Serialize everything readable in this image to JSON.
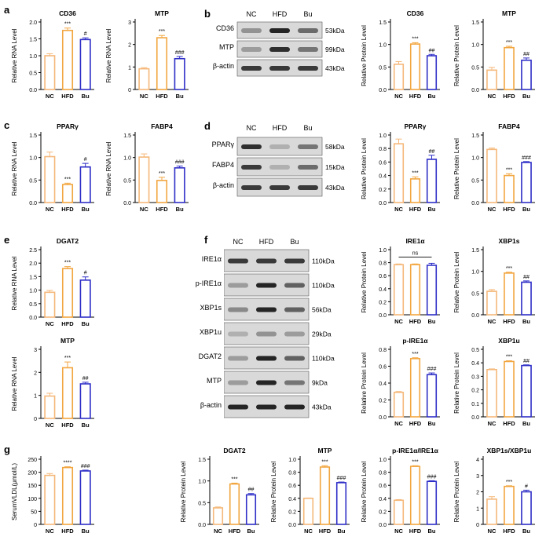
{
  "colors": {
    "NC": "#F5B87A",
    "HFD": "#F2A640",
    "Bu": "#2E2EC8",
    "axis": "#000000"
  },
  "panels": [
    "a",
    "b",
    "c",
    "d",
    "e",
    "f",
    "g"
  ],
  "blots": {
    "b": {
      "lanes": [
        "NC",
        "HFD",
        "Bu"
      ],
      "rows": [
        "CD36",
        "MTP",
        "β-actin"
      ],
      "sizes": [
        "53kDa",
        "99kDa",
        "43kDa"
      ]
    },
    "d": {
      "lanes": [
        "NC",
        "HFD",
        "Bu"
      ],
      "rows": [
        "PPARγ",
        "FABP4",
        "β-actin"
      ],
      "sizes": [
        "58kDa",
        "15kDa",
        "43kDa"
      ]
    },
    "f": {
      "lanes": [
        "NC",
        "HFD",
        "Bu"
      ],
      "rows": [
        "IRE1α",
        "p-IRE1α",
        "XBP1s",
        "XBP1u",
        "DGAT2",
        "MTP",
        "β-actin"
      ],
      "sizes": [
        "110kDa",
        "110kDa",
        "56kDa",
        "29kDa",
        "110kDa",
        "9kDa",
        "43kDa"
      ]
    }
  },
  "chart_data": [
    {
      "id": "a1",
      "type": "bar",
      "title": "CD36",
      "ylabel": "Relative RNA Level",
      "categories": [
        "NC",
        "HFD",
        "Bu"
      ],
      "values": [
        1.0,
        1.75,
        1.48
      ],
      "errors": [
        0.06,
        0.07,
        0.05
      ],
      "ylim": [
        0,
        2.0
      ],
      "yticks": [
        "0.0",
        "0.5",
        "1.0",
        "1.5",
        "2.0"
      ],
      "annotations": [
        "",
        "***",
        "#"
      ]
    },
    {
      "id": "a2",
      "type": "bar",
      "title": "MTP",
      "ylabel": "Relative RNA Level",
      "categories": [
        "NC",
        "HFD",
        "Bu"
      ],
      "values": [
        0.92,
        2.3,
        1.37
      ],
      "errors": [
        0.05,
        0.1,
        0.1
      ],
      "ylim": [
        0,
        3
      ],
      "yticks": [
        "0",
        "1",
        "2",
        "3"
      ],
      "annotations": [
        "",
        "***",
        "###"
      ]
    },
    {
      "id": "b1",
      "type": "bar",
      "title": "CD36",
      "ylabel": "Relative Protein Level",
      "categories": [
        "NC",
        "HFD",
        "Bu"
      ],
      "values": [
        0.56,
        1.01,
        0.75
      ],
      "errors": [
        0.06,
        0.03,
        0.03
      ],
      "ylim": [
        0,
        1.5
      ],
      "yticks": [
        "0.0",
        "0.5",
        "1.0",
        "1.5"
      ],
      "annotations": [
        "",
        "***",
        "##"
      ]
    },
    {
      "id": "b2",
      "type": "bar",
      "title": "MTP",
      "ylabel": "Relative Protein Level",
      "categories": [
        "NC",
        "HFD",
        "Bu"
      ],
      "values": [
        0.43,
        0.93,
        0.65
      ],
      "errors": [
        0.06,
        0.03,
        0.05
      ],
      "ylim": [
        0,
        1.5
      ],
      "yticks": [
        "0.0",
        "0.5",
        "1.0",
        "1.5"
      ],
      "annotations": [
        "",
        "***",
        "##"
      ]
    },
    {
      "id": "c1",
      "type": "bar",
      "title": "PPARγ",
      "ylabel": "Relative RNA Level",
      "categories": [
        "NC",
        "HFD",
        "Bu"
      ],
      "values": [
        1.02,
        0.4,
        0.79
      ],
      "errors": [
        0.1,
        0.03,
        0.08
      ],
      "ylim": [
        0,
        1.5
      ],
      "yticks": [
        "0.0",
        "0.5",
        "1.0",
        "1.5"
      ],
      "annotations": [
        "",
        "***",
        "#"
      ]
    },
    {
      "id": "c2",
      "type": "bar",
      "title": "FABP4",
      "ylabel": "Relative RNA Level",
      "categories": [
        "NC",
        "HFD",
        "Bu"
      ],
      "values": [
        1.01,
        0.49,
        0.77
      ],
      "errors": [
        0.07,
        0.07,
        0.04
      ],
      "ylim": [
        0,
        1.5
      ],
      "yticks": [
        "0.0",
        "0.5",
        "1.0",
        "1.5"
      ],
      "annotations": [
        "",
        "***",
        "###"
      ]
    },
    {
      "id": "d1",
      "type": "bar",
      "title": "PPARγ",
      "ylabel": "Relative Protein Level",
      "categories": [
        "NC",
        "HFD",
        "Bu"
      ],
      "values": [
        0.87,
        0.35,
        0.64
      ],
      "errors": [
        0.07,
        0.03,
        0.06
      ],
      "ylim": [
        0,
        1.0
      ],
      "yticks": [
        "0.0",
        "0.2",
        "0.4",
        "0.6",
        "0.8",
        "1.0"
      ],
      "annotations": [
        "",
        "***",
        "##"
      ]
    },
    {
      "id": "d2",
      "type": "bar",
      "title": "FABP4",
      "ylabel": "Relative Protein Level",
      "categories": [
        "NC",
        "HFD",
        "Bu"
      ],
      "values": [
        1.18,
        0.6,
        0.89
      ],
      "errors": [
        0.03,
        0.04,
        0.02
      ],
      "ylim": [
        0,
        1.5
      ],
      "yticks": [
        "0.0",
        "0.5",
        "1.0",
        "1.5"
      ],
      "annotations": [
        "",
        "***",
        "###"
      ]
    },
    {
      "id": "e1",
      "type": "bar",
      "title": "DGAT2",
      "ylabel": "Relative RNA Level",
      "categories": [
        "NC",
        "HFD",
        "Bu"
      ],
      "values": [
        0.92,
        1.8,
        1.37
      ],
      "errors": [
        0.07,
        0.07,
        0.12
      ],
      "ylim": [
        0,
        2.5
      ],
      "yticks": [
        "0.0",
        "0.5",
        "1.0",
        "1.5",
        "2.0",
        "2.5"
      ],
      "annotations": [
        "",
        "***",
        "#"
      ]
    },
    {
      "id": "e2",
      "type": "bar",
      "title": "MTP",
      "ylabel": "Relative RNA Level",
      "categories": [
        "NC",
        "HFD",
        "Bu"
      ],
      "values": [
        0.97,
        2.2,
        1.5
      ],
      "errors": [
        0.12,
        0.25,
        0.07
      ],
      "ylim": [
        0,
        3
      ],
      "yticks": [
        "0",
        "1",
        "2",
        "3"
      ],
      "annotations": [
        "",
        "***",
        "##"
      ]
    },
    {
      "id": "f1",
      "type": "bar",
      "title": "IRE1α",
      "ylabel": "Relative Protein Level",
      "categories": [
        "NC",
        "HFD",
        "Bu"
      ],
      "values": [
        0.77,
        0.77,
        0.76
      ],
      "errors": [
        0.01,
        0.01,
        0.03
      ],
      "ylim": [
        0,
        1.0
      ],
      "yticks": [
        "0.0",
        "0.2",
        "0.4",
        "0.6",
        "0.8",
        "1.0"
      ],
      "annotations": [
        "",
        "",
        ""
      ],
      "bracket": "ns"
    },
    {
      "id": "f2",
      "type": "bar",
      "title": "XBP1s",
      "ylabel": "Relative Protein Level",
      "categories": [
        "NC",
        "HFD",
        "Bu"
      ],
      "values": [
        0.54,
        0.96,
        0.75
      ],
      "errors": [
        0.04,
        0.02,
        0.03
      ],
      "ylim": [
        0,
        1.5
      ],
      "yticks": [
        "0.0",
        "0.5",
        "1.0",
        "1.5"
      ],
      "annotations": [
        "",
        "***",
        "##"
      ]
    },
    {
      "id": "f3",
      "type": "bar",
      "title": "p-IRE1α",
      "ylabel": "Relative Protein Level",
      "categories": [
        "NC",
        "HFD",
        "Bu"
      ],
      "values": [
        0.29,
        0.69,
        0.5
      ],
      "errors": [
        0.01,
        0.01,
        0.02
      ],
      "ylim": [
        0,
        0.8
      ],
      "yticks": [
        "0.0",
        "0.2",
        "0.4",
        "0.6",
        "0.8"
      ],
      "annotations": [
        "",
        "***",
        "###"
      ]
    },
    {
      "id": "f4",
      "type": "bar",
      "title": "XBP1u",
      "ylabel": "Relative Protein Level",
      "categories": [
        "NC",
        "HFD",
        "Bu"
      ],
      "values": [
        0.35,
        0.41,
        0.38
      ],
      "errors": [
        0.005,
        0.005,
        0.005
      ],
      "ylim": [
        0,
        0.5
      ],
      "yticks": [
        "0.0",
        "0.1",
        "0.2",
        "0.3",
        "0.4",
        "0.5"
      ],
      "annotations": [
        "",
        "***",
        "##"
      ]
    },
    {
      "id": "g1",
      "type": "bar",
      "title": "",
      "ylabel": "SerumVLDL(μmol/L)",
      "categories": [
        "NC",
        "HFD",
        "Bu"
      ],
      "values": [
        188,
        218,
        205
      ],
      "errors": [
        7,
        3,
        3
      ],
      "ylim": [
        0,
        250
      ],
      "yticks": [
        "0",
        "50",
        "100",
        "150",
        "200",
        "250"
      ],
      "annotations": [
        "",
        "****",
        "###"
      ]
    },
    {
      "id": "h1",
      "type": "bar",
      "title": "DGAT2",
      "ylabel": "Relative Protein Level",
      "categories": [
        "NC",
        "HFD",
        "Bu"
      ],
      "values": [
        0.38,
        0.93,
        0.68
      ],
      "errors": [
        0.02,
        0.02,
        0.03
      ],
      "ylim": [
        0,
        1.5
      ],
      "yticks": [
        "0.0",
        "0.5",
        "1.0",
        "1.5"
      ],
      "annotations": [
        "",
        "***",
        "##"
      ]
    },
    {
      "id": "h2",
      "type": "bar",
      "title": "MTP",
      "ylabel": "Relative Protein Level",
      "categories": [
        "NC",
        "HFD",
        "Bu"
      ],
      "values": [
        0.4,
        0.88,
        0.64
      ],
      "errors": [
        0.005,
        0.02,
        0.01
      ],
      "ylim": [
        0,
        1.0
      ],
      "yticks": [
        "0.0",
        "0.2",
        "0.4",
        "0.6",
        "0.8",
        "1.0"
      ],
      "annotations": [
        "",
        "***",
        "###"
      ]
    },
    {
      "id": "h3",
      "type": "bar",
      "title": "p-IRE1α/IRE1α",
      "ylabel": "Relative Protein Level",
      "categories": [
        "NC",
        "HFD",
        "Bu"
      ],
      "values": [
        0.37,
        0.89,
        0.66
      ],
      "errors": [
        0.01,
        0.01,
        0.01
      ],
      "ylim": [
        0,
        1.0
      ],
      "yticks": [
        "0.0",
        "0.2",
        "0.4",
        "0.6",
        "0.8",
        "1.0"
      ],
      "annotations": [
        "",
        "***",
        "###"
      ]
    },
    {
      "id": "h4",
      "type": "bar",
      "title": "XBP1s/XBP1u",
      "ylabel": "Relative Protein Level",
      "categories": [
        "NC",
        "HFD",
        "Bu"
      ],
      "values": [
        1.55,
        2.33,
        2.0
      ],
      "errors": [
        0.15,
        0.04,
        0.1
      ],
      "ylim": [
        0,
        4
      ],
      "yticks": [
        "0",
        "1",
        "2",
        "3",
        "4"
      ],
      "annotations": [
        "",
        "***",
        "#"
      ]
    }
  ]
}
